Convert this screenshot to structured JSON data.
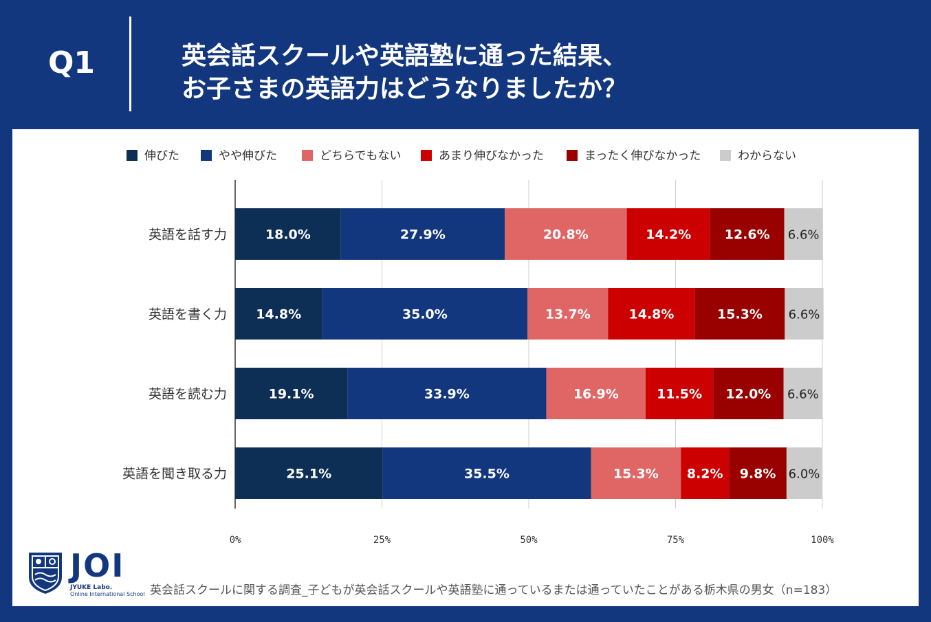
{
  "header": {
    "q_label": "Q1",
    "question_line1": "英会話スクールや英語塾に通った結果、",
    "question_line2": "お子さまの英語力はどうなりましたか？"
  },
  "chart_data": {
    "type": "bar",
    "orientation": "horizontal-stacked-100",
    "legend_position": "top",
    "categories": [
      "英語を話す力",
      "英語を書く力",
      "英語を読む力",
      "英語を聞き取る力"
    ],
    "series": [
      {
        "name": "伸びた",
        "color": "#0e2f55",
        "values": [
          18.0,
          14.8,
          19.1,
          25.1
        ]
      },
      {
        "name": "やや伸びた",
        "color": "#13377f",
        "values": [
          27.9,
          35.0,
          33.9,
          35.5
        ]
      },
      {
        "name": "どちらでもない",
        "color": "#e06666",
        "values": [
          20.8,
          13.7,
          16.9,
          15.3
        ]
      },
      {
        "name": "あまり伸びなかった",
        "color": "#cc0000",
        "values": [
          14.2,
          14.8,
          11.5,
          8.2
        ]
      },
      {
        "name": "まったく伸びなかった",
        "color": "#990000",
        "values": [
          12.6,
          15.3,
          12.0,
          9.8
        ]
      },
      {
        "name": "わからない",
        "color": "#cccccc",
        "values": [
          6.6,
          6.6,
          6.6,
          6.0
        ]
      }
    ],
    "x_ticks": [
      "0%",
      "25%",
      "50%",
      "75%",
      "100%"
    ],
    "xlim": [
      0,
      100
    ],
    "grid": true
  },
  "footer": {
    "logo_text": "JOI",
    "logo_sub1": "JYUKE Labo.",
    "logo_sub2": "Online International School",
    "source": "英会話スクールに関する調査_子どもが英会話スクールや英語塾に通っているまたは通っていたことがある栃木県の男女（n=183）"
  }
}
